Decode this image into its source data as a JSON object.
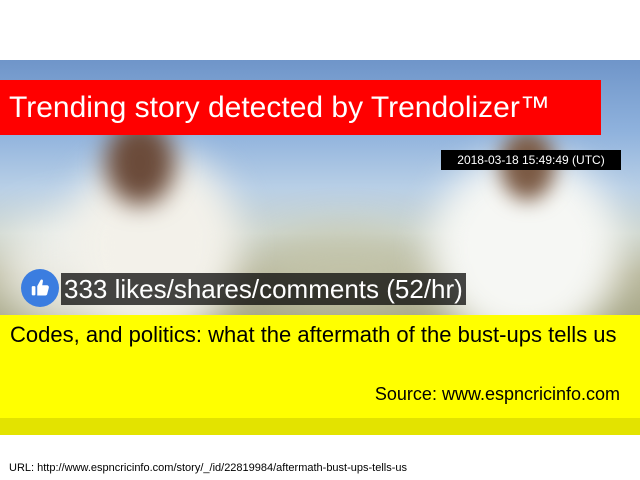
{
  "banner": {
    "title": "Trending story detected by Trendolizer™"
  },
  "timestamp": "2018-03-18 15:49:49 (UTC)",
  "engagement": {
    "icon": "thumbs-up-icon",
    "text": "333 likes/shares/comments (52/hr)"
  },
  "story": {
    "headline": "Codes, and politics: what the aftermath of the bust-ups tells us",
    "source": "Source: www.espncricinfo.com"
  },
  "footer": {
    "url": "URL: http://www.espncricinfo.com/story/_/id/22819984/aftermath-bust-ups-tells-us"
  },
  "colors": {
    "banner": "#ff0000",
    "panel": "#ffff00",
    "like_icon": "#3b7de0",
    "timestamp_bg": "#000000"
  }
}
